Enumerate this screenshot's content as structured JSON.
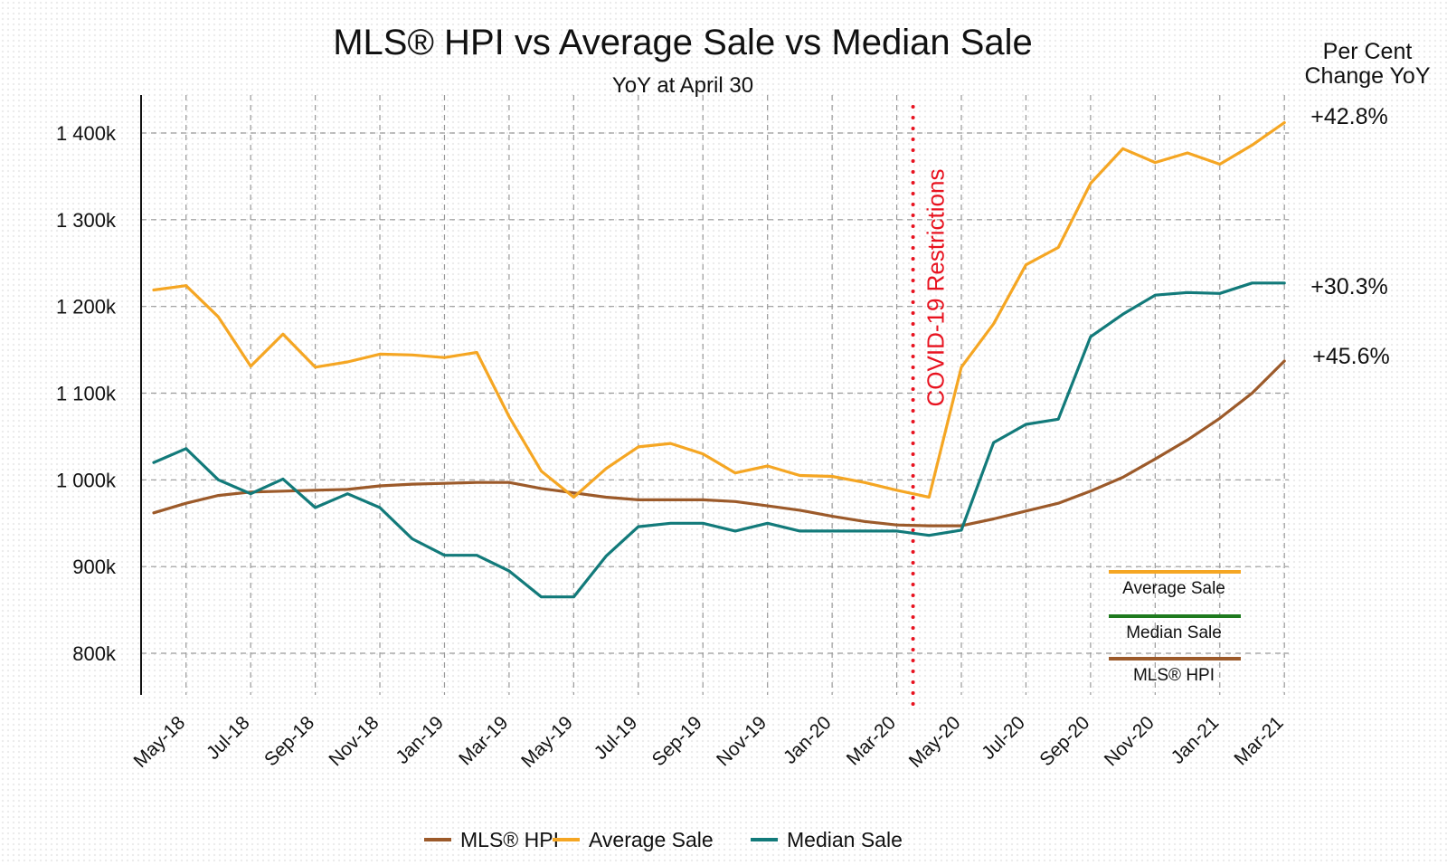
{
  "chart_data": {
    "type": "line",
    "title": "MLS® HPI vs Average Sale vs Median Sale",
    "subtitle": "YoY at April 30",
    "right_header": [
      "Per Cent",
      "Change YoY"
    ],
    "ylim": [
      760000,
      1460000
    ],
    "y_ticks": [
      800000,
      900000,
      1000000,
      1100000,
      1200000,
      1300000,
      1400000
    ],
    "y_tick_labels": [
      "800k",
      "900k",
      "1 000k",
      "1 100k",
      "1 200k",
      "1 300k",
      "1 400k"
    ],
    "x": [
      "Apr-18",
      "May-18",
      "Jun-18",
      "Jul-18",
      "Aug-18",
      "Sep-18",
      "Oct-18",
      "Nov-18",
      "Dec-18",
      "Jan-19",
      "Feb-19",
      "Mar-19",
      "Apr-19",
      "May-19",
      "Jun-19",
      "Jul-19",
      "Aug-19",
      "Sep-19",
      "Oct-19",
      "Nov-19",
      "Dec-19",
      "Jan-20",
      "Feb-20",
      "Mar-20",
      "Apr-20",
      "May-20",
      "Jun-20",
      "Jul-20",
      "Aug-20",
      "Sep-20",
      "Oct-20",
      "Nov-20",
      "Dec-20",
      "Jan-21",
      "Feb-21",
      "Mar-21",
      "Apr-21"
    ],
    "x_tick_labels": [
      "May-18",
      "Jul-18",
      "Sep-18",
      "Nov-18",
      "Jan-19",
      "Mar-19",
      "May-19",
      "Jul-19",
      "Sep-19",
      "Nov-19",
      "Jan-20",
      "Mar-20",
      "May-20",
      "Jul-20",
      "Sep-20",
      "Nov-20",
      "Jan-21",
      "Mar-21"
    ],
    "series": [
      {
        "name": "MLS® HPI",
        "color": "#9c5a2a",
        "values": [
          962000,
          973000,
          982000,
          986000,
          987000,
          988000,
          989000,
          993000,
          995000,
          996000,
          997000,
          997000,
          990000,
          985000,
          980000,
          977000,
          977000,
          977000,
          975000,
          970000,
          965000,
          958000,
          952000,
          948000,
          947000,
          947000,
          955000,
          964000,
          973000,
          987000,
          1003000,
          1024000,
          1046000,
          1071000,
          1100000,
          1137000,
          null
        ],
        "change_label": "+45.6%"
      },
      {
        "name": "Average Sale",
        "color": "#f5a623",
        "values": [
          1219000,
          1224000,
          1188000,
          1131000,
          1168000,
          1130000,
          1136000,
          1145000,
          1144000,
          1141000,
          1147000,
          1073000,
          1010000,
          980000,
          1013000,
          1038000,
          1042000,
          1030000,
          1008000,
          1016000,
          1005000,
          1004000,
          997000,
          988000,
          980000,
          1130000,
          1180000,
          1248000,
          1268000,
          1342000,
          1382000,
          1366000,
          1377000,
          1364000,
          1386000,
          1412000,
          null
        ],
        "change_label": "+42.8%"
      },
      {
        "name": "Median Sale",
        "color": "#127a7a",
        "values": [
          1020000,
          1036000,
          1000000,
          984000,
          1001000,
          968000,
          984000,
          968000,
          932000,
          913000,
          913000,
          895000,
          865000,
          865000,
          912000,
          946000,
          950000,
          950000,
          941000,
          950000,
          941000,
          941000,
          941000,
          941000,
          936000,
          942000,
          1043000,
          1064000,
          1070000,
          1165000,
          1191000,
          1213000,
          1216000,
          1215000,
          1227000,
          1227000,
          null
        ],
        "change_label": "+30.3%"
      }
    ],
    "annotation": {
      "text": "COVID-19 Restrictions",
      "x": "Mar-20",
      "color": "#e8121f"
    },
    "inset_legend": [
      {
        "name": "Average Sale",
        "color": "#f5a623"
      },
      {
        "name": "Median Sale",
        "color": "#1e7a1e"
      },
      {
        "name": "MLS® HPI",
        "color": "#9c5a2a"
      }
    ],
    "legend": [
      {
        "name": "MLS® HPI",
        "color": "#9c5a2a"
      },
      {
        "name": "Average Sale",
        "color": "#f5a623"
      },
      {
        "name": "Median Sale",
        "color": "#127a7a"
      }
    ],
    "grid": true,
    "legend_position": "bottom"
  }
}
